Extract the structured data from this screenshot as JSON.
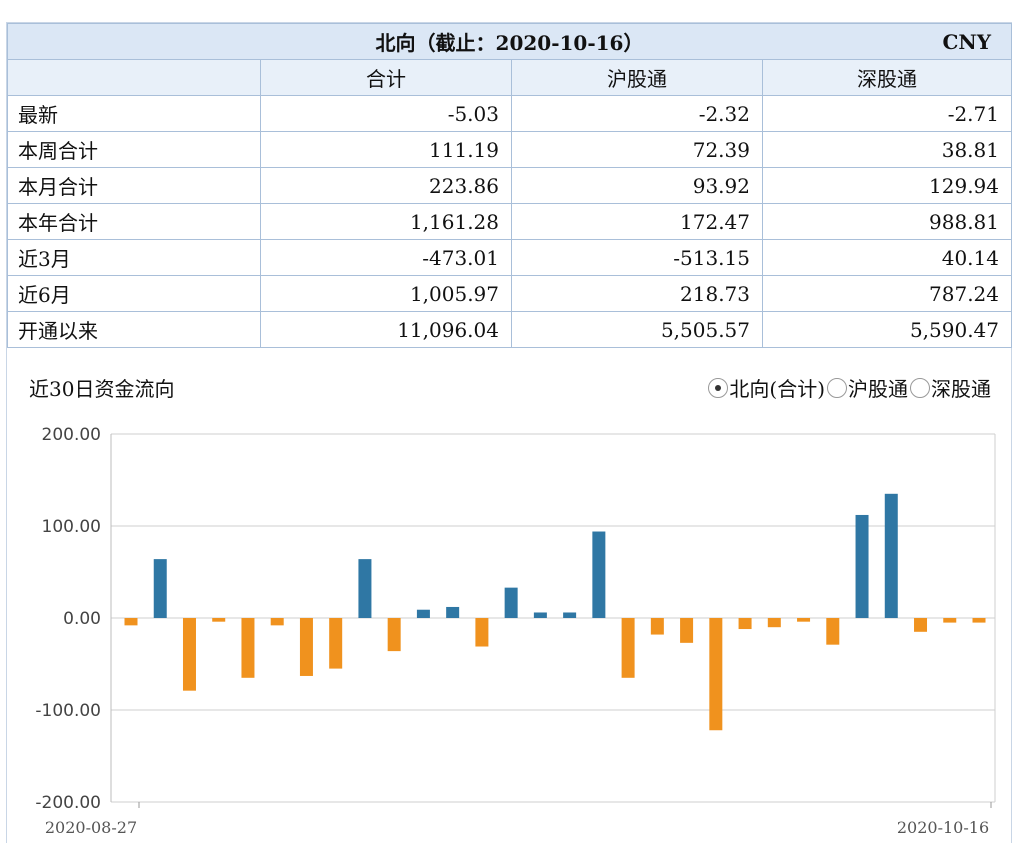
{
  "table": {
    "title": "北向（截止：2020-10-16）",
    "currency": "CNY",
    "columns": [
      "合计",
      "沪股通",
      "深股通"
    ],
    "rows": [
      {
        "label": "最新",
        "values": [
          "-5.03",
          "-2.32",
          "-2.71"
        ]
      },
      {
        "label": "本周合计",
        "values": [
          "111.19",
          "72.39",
          "38.81"
        ]
      },
      {
        "label": "本月合计",
        "values": [
          "223.86",
          "93.92",
          "129.94"
        ]
      },
      {
        "label": "本年合计",
        "values": [
          "1,161.28",
          "172.47",
          "988.81"
        ]
      },
      {
        "label": "近3月",
        "values": [
          "-473.01",
          "-513.15",
          "40.14"
        ]
      },
      {
        "label": "近6月",
        "values": [
          "1,005.97",
          "218.73",
          "787.24"
        ]
      },
      {
        "label": "开通以来",
        "values": [
          "11,096.04",
          "5,505.57",
          "5,590.47"
        ]
      }
    ]
  },
  "chart": {
    "title": "近30日资金流向",
    "legend": [
      {
        "label": "北向(合计)",
        "selected": true
      },
      {
        "label": "沪股通",
        "selected": false
      },
      {
        "label": "深股通",
        "selected": false
      }
    ]
  },
  "chart_data": {
    "type": "bar",
    "title": "近30日资金流向",
    "xlabel": "",
    "ylabel": "",
    "ylim": [
      -200,
      200
    ],
    "yticks": [
      "200.00",
      "100.00",
      "0.00",
      "-100.00",
      "-200.00"
    ],
    "x_first_label": "2020-08-27",
    "x_last_label": "2020-10-16",
    "grid": true,
    "positive_color": "#2f77a4",
    "negative_color": "#f0921e",
    "values": [
      -8,
      64,
      -79,
      -4,
      -65,
      -8,
      -63,
      -55,
      64,
      -36,
      9,
      12,
      -31,
      33,
      6,
      6,
      94,
      -65,
      -18,
      -27,
      -122,
      -12,
      -10,
      -4,
      -29,
      112,
      135,
      -15,
      -5,
      -5
    ]
  }
}
